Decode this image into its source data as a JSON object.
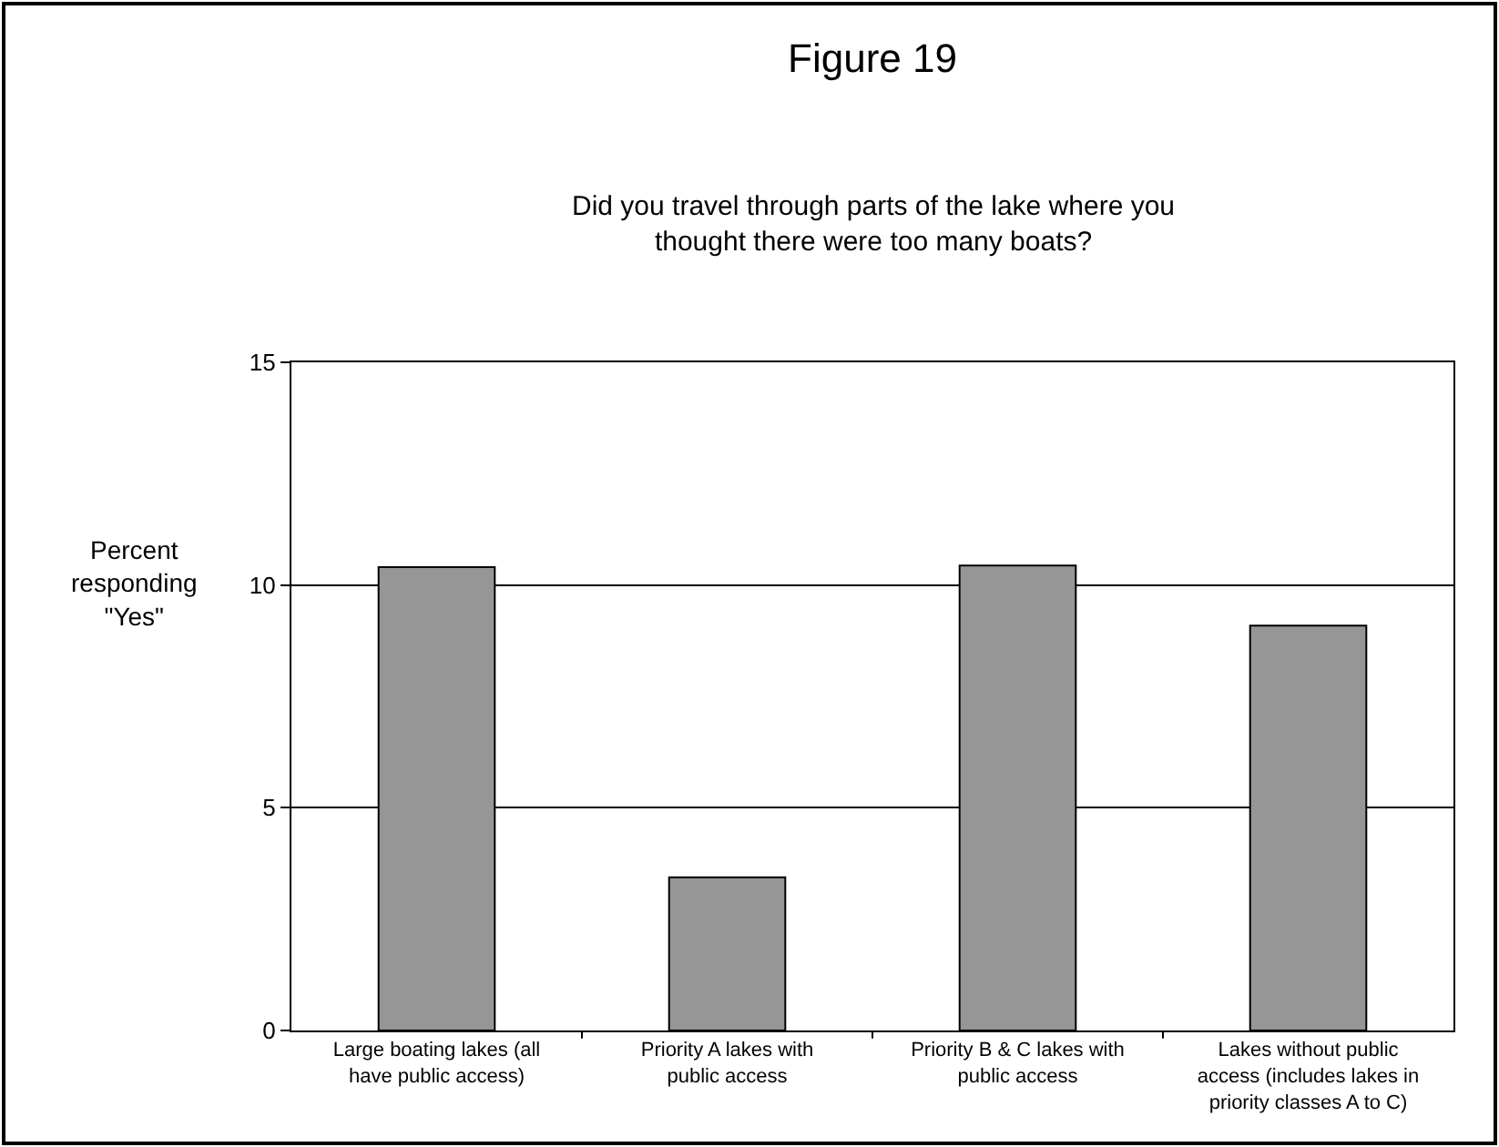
{
  "chart_data": {
    "type": "bar",
    "title": "Figure 19",
    "subtitle": "Did you travel through parts of the lake where you thought there were too many boats?",
    "ylabel": "Percent responding \"Yes\"",
    "categories": [
      "Large boating lakes (all have public access)",
      "Priority A lakes with public access",
      "Priority B & C lakes with public access",
      "Lakes without public access (includes lakes in priority classes A to C)"
    ],
    "values": [
      10.4,
      3.44,
      10.44,
      9.09
    ],
    "color": "#969696",
    "ylim": [
      0,
      15
    ],
    "yticks": [
      0,
      5,
      10,
      15
    ],
    "grid": "y"
  }
}
